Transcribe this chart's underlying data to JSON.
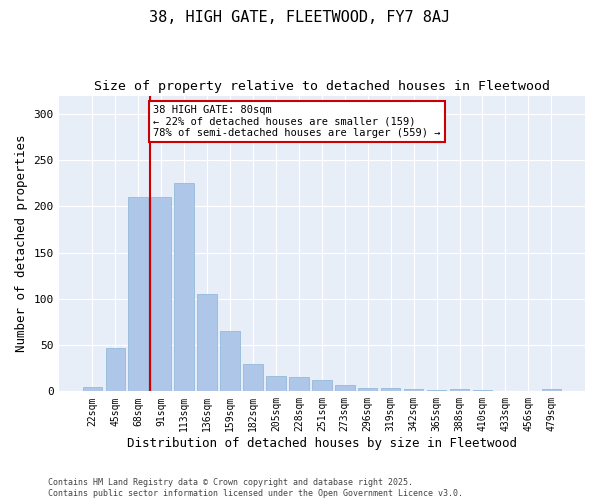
{
  "title": "38, HIGH GATE, FLEETWOOD, FY7 8AJ",
  "subtitle": "Size of property relative to detached houses in Fleetwood",
  "xlabel": "Distribution of detached houses by size in Fleetwood",
  "ylabel": "Number of detached properties",
  "categories": [
    "22sqm",
    "45sqm",
    "68sqm",
    "91sqm",
    "113sqm",
    "136sqm",
    "159sqm",
    "182sqm",
    "205sqm",
    "228sqm",
    "251sqm",
    "273sqm",
    "296sqm",
    "319sqm",
    "342sqm",
    "365sqm",
    "388sqm",
    "410sqm",
    "433sqm",
    "456sqm",
    "479sqm"
  ],
  "values": [
    5,
    47,
    210,
    210,
    225,
    105,
    65,
    30,
    17,
    16,
    12,
    7,
    4,
    4,
    3,
    1,
    3,
    1,
    0,
    0,
    2
  ],
  "bar_color": "#aec6e8",
  "bar_edge_color": "#8ab4d8",
  "vline_x": 2.5,
  "vline_color": "#cc0000",
  "annotation_text": "38 HIGH GATE: 80sqm\n← 22% of detached houses are smaller (159)\n78% of semi-detached houses are larger (559) →",
  "annotation_box_color": "#ffffff",
  "annotation_box_edge": "#cc0000",
  "ylim": [
    0,
    320
  ],
  "yticks": [
    0,
    50,
    100,
    150,
    200,
    250,
    300
  ],
  "footnote": "Contains HM Land Registry data © Crown copyright and database right 2025.\nContains public sector information licensed under the Open Government Licence v3.0.",
  "bg_color": "#e8eef8",
  "title_fontsize": 11,
  "subtitle_fontsize": 9.5,
  "tick_fontsize": 7,
  "label_fontsize": 9,
  "footnote_fontsize": 6
}
